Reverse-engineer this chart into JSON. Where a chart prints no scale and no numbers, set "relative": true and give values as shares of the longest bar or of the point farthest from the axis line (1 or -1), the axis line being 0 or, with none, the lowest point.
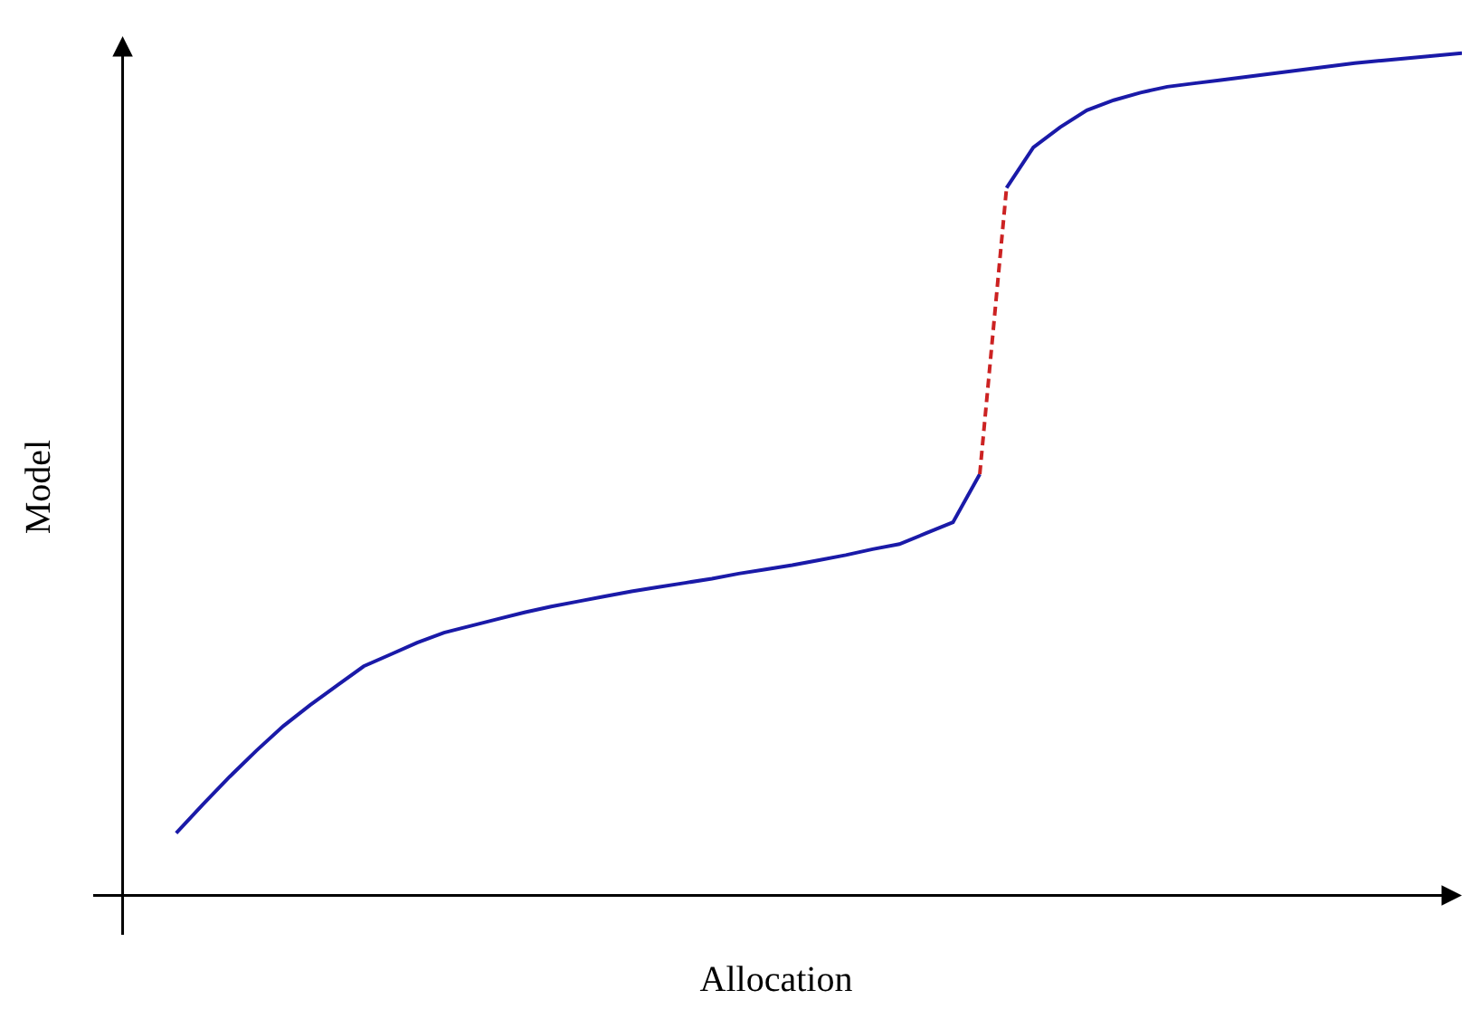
{
  "chart_data": {
    "type": "line",
    "xlabel": "Allocation",
    "ylabel": "Model",
    "relative": true,
    "categories": [
      null,
      null,
      null,
      null,
      null,
      null,
      null,
      null,
      null,
      null,
      null,
      null,
      null,
      null,
      null,
      null,
      null,
      null,
      null,
      null,
      null,
      null,
      null,
      null,
      null,
      null,
      null,
      null,
      null,
      null,
      null,
      null,
      null,
      null,
      null,
      null,
      null,
      null,
      null,
      null,
      null,
      null,
      null,
      null,
      null,
      null,
      null,
      null,
      null,
      null,
      null
    ],
    "series": [
      {
        "color": "#1a1aa8",
        "line_style": "solid",
        "values": [
          null,
          null,
          0.074,
          0.108,
          0.141,
          0.172,
          0.201,
          0.226,
          0.249,
          0.272,
          0.286,
          0.3,
          0.312,
          0.32,
          0.328,
          0.336,
          0.343,
          0.349,
          0.355,
          0.361,
          0.366,
          0.371,
          0.376,
          0.382,
          0.387,
          0.392,
          0.398,
          0.404,
          0.411,
          0.417,
          0.43,
          0.443,
          0.5,
          null,
          null,
          null,
          null,
          null,
          null,
          null,
          null,
          null,
          null,
          null,
          null,
          null,
          null,
          null,
          null,
          null,
          null
        ]
      },
      {
        "color": "#cc2222",
        "line_style": "dashed",
        "values": [
          null,
          null,
          null,
          null,
          null,
          null,
          null,
          null,
          null,
          null,
          null,
          null,
          null,
          null,
          null,
          null,
          null,
          null,
          null,
          null,
          null,
          null,
          null,
          null,
          null,
          null,
          null,
          null,
          null,
          null,
          null,
          null,
          0.5,
          0.84,
          null,
          null,
          null,
          null,
          null,
          null,
          null,
          null,
          null,
          null,
          null,
          null,
          null,
          null,
          null,
          null,
          null
        ]
      },
      {
        "color": "#1a1aa8",
        "line_style": "solid",
        "values": [
          null,
          null,
          null,
          null,
          null,
          null,
          null,
          null,
          null,
          null,
          null,
          null,
          null,
          null,
          null,
          null,
          null,
          null,
          null,
          null,
          null,
          null,
          null,
          null,
          null,
          null,
          null,
          null,
          null,
          null,
          null,
          null,
          null,
          0.84,
          0.888,
          0.912,
          0.932,
          0.944,
          0.953,
          0.96,
          0.964,
          0.968,
          0.972,
          0.976,
          0.98,
          0.984,
          0.988,
          0.991,
          0.994,
          0.997,
          1.0
        ]
      }
    ]
  }
}
